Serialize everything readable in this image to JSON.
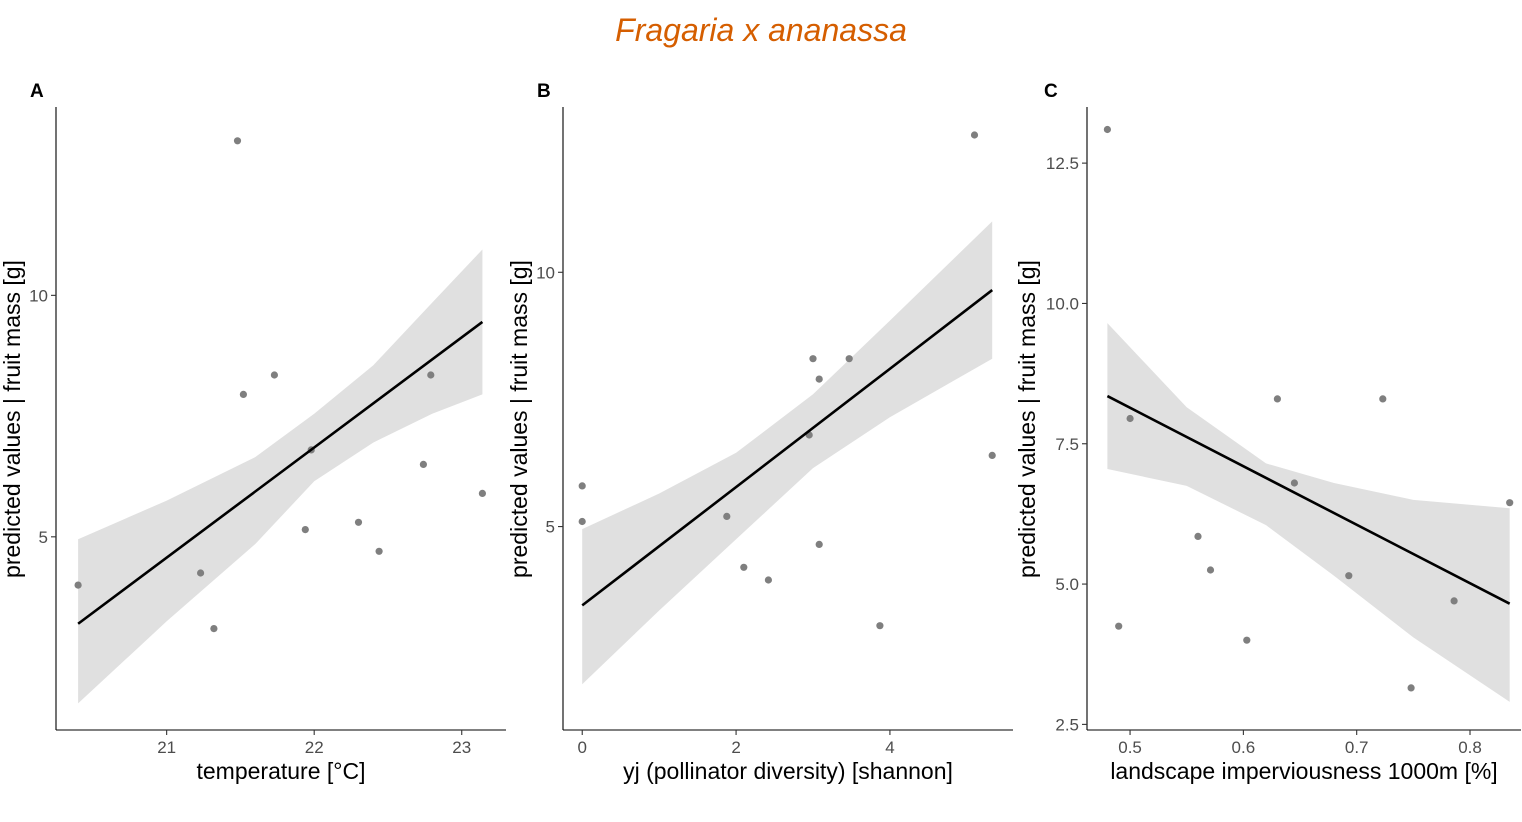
{
  "figure": {
    "title": "Fragaria x ananassa"
  },
  "chart_data": [
    {
      "type": "scatter",
      "tag": "A",
      "xlabel": "temperature [°C]",
      "ylabel": "predicted values | fruit mass [g]",
      "xlim": [
        20.25,
        23.3
      ],
      "ylim": [
        1.0,
        13.9
      ],
      "xticks": [
        21,
        22,
        23
      ],
      "xtick_labels": [
        "21",
        "22",
        "23"
      ],
      "yticks": [
        5,
        10
      ],
      "ytick_labels": [
        "5",
        "10"
      ],
      "points": [
        {
          "x": 20.4,
          "y": 4.0
        },
        {
          "x": 21.23,
          "y": 4.25
        },
        {
          "x": 21.32,
          "y": 3.1
        },
        {
          "x": 21.48,
          "y": 13.2
        },
        {
          "x": 21.52,
          "y": 7.95
        },
        {
          "x": 21.73,
          "y": 8.35
        },
        {
          "x": 21.94,
          "y": 5.15
        },
        {
          "x": 21.98,
          "y": 6.8
        },
        {
          "x": 22.3,
          "y": 5.3
        },
        {
          "x": 22.44,
          "y": 4.7
        },
        {
          "x": 22.74,
          "y": 6.5
        },
        {
          "x": 22.79,
          "y": 8.35
        },
        {
          "x": 23.14,
          "y": 5.9
        }
      ],
      "fit": {
        "x": [
          20.4,
          23.14
        ],
        "y": [
          3.2,
          9.45
        ]
      },
      "ci": {
        "x": [
          20.4,
          21.0,
          21.6,
          22.0,
          22.4,
          22.8,
          23.14
        ],
        "lower": [
          1.55,
          3.25,
          4.85,
          6.15,
          6.95,
          7.55,
          7.95
        ],
        "upper": [
          4.95,
          5.75,
          6.65,
          7.55,
          8.55,
          9.85,
          10.95
        ]
      }
    },
    {
      "type": "scatter",
      "tag": "B",
      "xlabel": "yj (pollinator diversity) [shannon]",
      "ylabel": "predicted values | fruit mass [g]",
      "xlim": [
        -0.25,
        5.6
      ],
      "ylim": [
        1.0,
        13.25
      ],
      "xticks": [
        0,
        2,
        4
      ],
      "xtick_labels": [
        "0",
        "2",
        "4"
      ],
      "yticks": [
        5,
        10
      ],
      "ytick_labels": [
        "5",
        "10"
      ],
      "points": [
        {
          "x": 0.0,
          "y": 5.8
        },
        {
          "x": 0.0,
          "y": 5.1
        },
        {
          "x": 1.88,
          "y": 5.2
        },
        {
          "x": 2.1,
          "y": 4.2
        },
        {
          "x": 2.42,
          "y": 3.95
        },
        {
          "x": 2.95,
          "y": 6.8
        },
        {
          "x": 3.0,
          "y": 8.3
        },
        {
          "x": 3.08,
          "y": 7.9
        },
        {
          "x": 3.08,
          "y": 4.65
        },
        {
          "x": 3.47,
          "y": 8.3
        },
        {
          "x": 3.87,
          "y": 3.05
        },
        {
          "x": 5.1,
          "y": 12.7
        },
        {
          "x": 5.33,
          "y": 6.4
        }
      ],
      "fit": {
        "x": [
          0.0,
          5.33
        ],
        "y": [
          3.45,
          9.65
        ]
      },
      "ci": {
        "x": [
          0.0,
          1.0,
          2.0,
          3.0,
          4.0,
          5.33
        ],
        "lower": [
          1.9,
          3.35,
          4.75,
          6.15,
          7.15,
          8.3
        ],
        "upper": [
          4.95,
          5.65,
          6.45,
          7.6,
          9.05,
          11.0
        ]
      }
    },
    {
      "type": "scatter",
      "tag": "C",
      "xlabel": "landscape imperviousness 1000m [%]",
      "ylabel": "predicted values | fruit mass [g]",
      "xlim": [
        0.462,
        0.845
      ],
      "ylim": [
        2.4,
        13.5
      ],
      "xticks": [
        0.5,
        0.6,
        0.7,
        0.8
      ],
      "xtick_labels": [
        "0.5",
        "0.6",
        "0.7",
        "0.8"
      ],
      "yticks": [
        2.5,
        5.0,
        7.5,
        10.0,
        12.5
      ],
      "ytick_labels": [
        "2.5",
        "5.0",
        "7.5",
        "10.0",
        "12.5"
      ],
      "points": [
        {
          "x": 0.48,
          "y": 13.1
        },
        {
          "x": 0.49,
          "y": 4.25
        },
        {
          "x": 0.5,
          "y": 7.95
        },
        {
          "x": 0.56,
          "y": 5.85
        },
        {
          "x": 0.571,
          "y": 5.25
        },
        {
          "x": 0.603,
          "y": 4.0
        },
        {
          "x": 0.63,
          "y": 8.3
        },
        {
          "x": 0.645,
          "y": 6.8
        },
        {
          "x": 0.693,
          "y": 5.15
        },
        {
          "x": 0.723,
          "y": 8.3
        },
        {
          "x": 0.748,
          "y": 3.15
        },
        {
          "x": 0.786,
          "y": 4.7
        },
        {
          "x": 0.835,
          "y": 6.45
        }
      ],
      "fit": {
        "x": [
          0.48,
          0.835
        ],
        "y": [
          8.35,
          4.65
        ]
      },
      "ci": {
        "x": [
          0.48,
          0.55,
          0.62,
          0.68,
          0.75,
          0.835
        ],
        "lower": [
          7.05,
          6.75,
          6.05,
          5.15,
          4.05,
          2.9
        ],
        "upper": [
          9.65,
          8.15,
          7.15,
          6.8,
          6.5,
          6.35
        ]
      }
    }
  ]
}
